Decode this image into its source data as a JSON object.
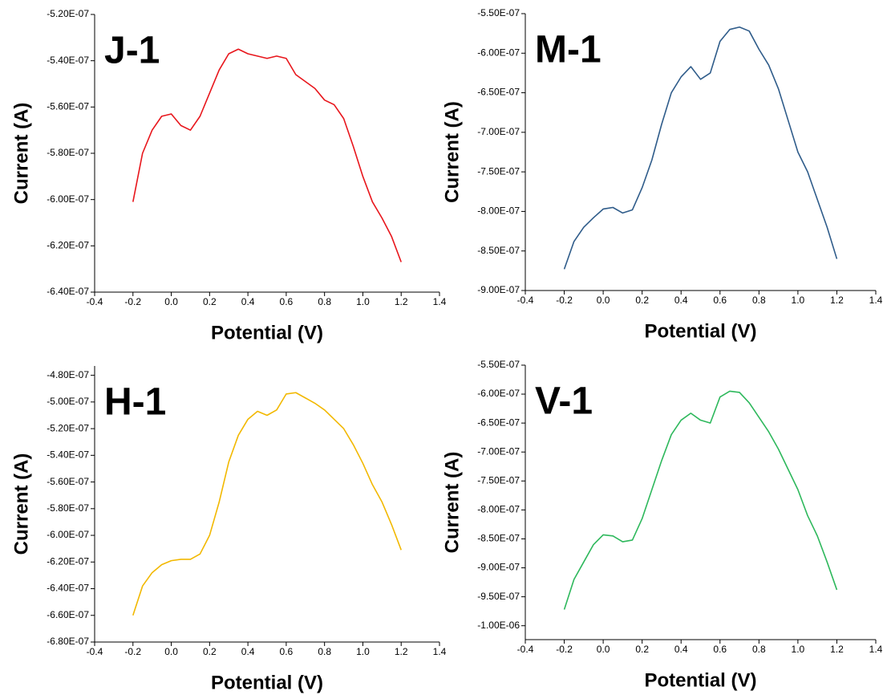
{
  "chart_data": [
    {
      "type": "line",
      "annotation": "J-1",
      "xlabel": "Potential (V)",
      "ylabel": "Current (A)",
      "color": "#e8161c",
      "x": [
        -0.2,
        -0.15,
        -0.1,
        -0.05,
        0,
        0.05,
        0.1,
        0.15,
        0.2,
        0.25,
        0.3,
        0.35,
        0.4,
        0.45,
        0.5,
        0.55,
        0.6,
        0.65,
        0.7,
        0.75,
        0.8,
        0.85,
        0.9,
        0.95,
        1.0,
        1.05,
        1.1,
        1.15,
        1.2
      ],
      "values": [
        -6.01e-07,
        -5.8e-07,
        -5.7e-07,
        -5.64e-07,
        -5.63e-07,
        -5.68e-07,
        -5.7e-07,
        -5.64e-07,
        -5.54e-07,
        -5.44e-07,
        -5.37e-07,
        -5.35e-07,
        -5.37e-07,
        -5.38e-07,
        -5.39e-07,
        -5.38e-07,
        -5.39e-07,
        -5.46e-07,
        -5.49e-07,
        -5.52e-07,
        -5.57e-07,
        -5.59e-07,
        -5.65e-07,
        -5.77e-07,
        -5.9e-07,
        -6.01e-07,
        -6.08e-07,
        -6.16e-07,
        -6.27e-07
      ],
      "xlim": [
        -0.4,
        1.4
      ],
      "xticks": [
        -0.4,
        -0.2,
        {
          "value": 0,
          "label": "0.0"
        },
        0.2,
        0.4,
        0.6,
        0.8,
        {
          "value": 1,
          "label": "1.0"
        },
        1.2,
        1.4
      ],
      "ylim": [
        -6.4e-07,
        -5.2e-07
      ],
      "yticks": [
        {
          "value": -6.4e-07,
          "label": "-6.40E-07"
        },
        {
          "value": -6.2e-07,
          "label": "-6.20E-07"
        },
        {
          "value": -6e-07,
          "label": "-6.00E-07"
        },
        {
          "value": -5.8e-07,
          "label": "-5.80E-07"
        },
        {
          "value": -5.6e-07,
          "label": "-5.60E-07"
        },
        {
          "value": -5.4e-07,
          "label": "-5.40E-07"
        },
        {
          "value": -5.2e-07,
          "label": "-5.20E-07"
        }
      ]
    },
    {
      "type": "line",
      "annotation": "M-1",
      "xlabel": "Potential (V)",
      "ylabel": "Current (A)",
      "color": "#2f5c8a",
      "x": [
        -0.2,
        -0.15,
        -0.1,
        -0.05,
        0,
        0.05,
        0.1,
        0.15,
        0.2,
        0.25,
        0.3,
        0.35,
        0.4,
        0.45,
        0.5,
        0.55,
        0.6,
        0.65,
        0.7,
        0.75,
        0.8,
        0.85,
        0.9,
        0.95,
        1.0,
        1.05,
        1.1,
        1.15,
        1.2
      ],
      "values": [
        -8.73e-07,
        -8.38e-07,
        -8.2e-07,
        -8.08e-07,
        -7.97e-07,
        -7.95e-07,
        -8.02e-07,
        -7.98e-07,
        -7.7e-07,
        -7.35e-07,
        -6.9e-07,
        -6.5e-07,
        -6.3e-07,
        -6.17e-07,
        -6.33e-07,
        -6.25e-07,
        -5.85e-07,
        -5.7e-07,
        -5.67e-07,
        -5.72e-07,
        -5.95e-07,
        -6.15e-07,
        -6.45e-07,
        -6.85e-07,
        -7.25e-07,
        -7.5e-07,
        -7.85e-07,
        -8.2e-07,
        -8.6e-07
      ],
      "xlim": [
        -0.4,
        1.4
      ],
      "xticks": [
        -0.4,
        -0.2,
        {
          "value": 0,
          "label": "0.0"
        },
        0.2,
        0.4,
        0.6,
        0.8,
        {
          "value": 1,
          "label": "1.0"
        },
        1.2,
        1.4
      ],
      "ylim": [
        -9e-07,
        -5.5e-07
      ],
      "yticks": [
        {
          "value": -9e-07,
          "label": "-9.00E-07"
        },
        {
          "value": -8.5e-07,
          "label": "-8.50E-07"
        },
        {
          "value": -8e-07,
          "label": "-8.00E-07"
        },
        {
          "value": -7.5e-07,
          "label": "-7.50E-07"
        },
        {
          "value": -7e-07,
          "label": "-7.00E-07"
        },
        {
          "value": -6.5e-07,
          "label": "-6.50E-07"
        },
        {
          "value": -6e-07,
          "label": "-6.00E-07"
        },
        {
          "value": -5.5e-07,
          "label": "-5.50E-07"
        }
      ]
    },
    {
      "type": "line",
      "annotation": "H-1",
      "xlabel": "Potential (V)",
      "ylabel": "Current (A)",
      "color": "#f2b800",
      "x": [
        -0.2,
        -0.15,
        -0.1,
        -0.05,
        0,
        0.05,
        0.1,
        0.15,
        0.2,
        0.25,
        0.3,
        0.35,
        0.4,
        0.45,
        0.5,
        0.55,
        0.6,
        0.65,
        0.7,
        0.75,
        0.8,
        0.85,
        0.9,
        0.95,
        1.0,
        1.05,
        1.1,
        1.15,
        1.2
      ],
      "values": [
        -6.6e-07,
        -6.38e-07,
        -6.28e-07,
        -6.22e-07,
        -6.19e-07,
        -6.18e-07,
        -6.18e-07,
        -6.14e-07,
        -6e-07,
        -5.75e-07,
        -5.45e-07,
        -5.25e-07,
        -5.13e-07,
        -5.07e-07,
        -5.1e-07,
        -5.06e-07,
        -4.94e-07,
        -4.93e-07,
        -4.97e-07,
        -5.01e-07,
        -5.06e-07,
        -5.13e-07,
        -5.2e-07,
        -5.32e-07,
        -5.46e-07,
        -5.62e-07,
        -5.75e-07,
        -5.92e-07,
        -6.11e-07
      ],
      "xlim": [
        -0.4,
        1.4
      ],
      "xticks": [
        -0.4,
        -0.2,
        {
          "value": 0,
          "label": "0.0"
        },
        0.2,
        0.4,
        0.6,
        0.8,
        {
          "value": 1,
          "label": "1.0"
        },
        1.2,
        1.4
      ],
      "ylim": [
        -6.8e-07,
        -4.73e-07
      ],
      "yticks": [
        {
          "value": -6.8e-07,
          "label": "-6.80E-07"
        },
        {
          "value": -6.6e-07,
          "label": "-6.60E-07"
        },
        {
          "value": -6.4e-07,
          "label": "-6.40E-07"
        },
        {
          "value": -6.2e-07,
          "label": "-6.20E-07"
        },
        {
          "value": -6e-07,
          "label": "-6.00E-07"
        },
        {
          "value": -5.8e-07,
          "label": "-5.80E-07"
        },
        {
          "value": -5.6e-07,
          "label": "-5.60E-07"
        },
        {
          "value": -5.4e-07,
          "label": "-5.40E-07"
        },
        {
          "value": -5.2e-07,
          "label": "-5.20E-07"
        },
        {
          "value": -5e-07,
          "label": "-5.00E-07"
        },
        {
          "value": -4.8e-07,
          "label": "-4.80E-07"
        }
      ]
    },
    {
      "type": "line",
      "annotation": "V-1",
      "xlabel": "Potential (V)",
      "ylabel": "Current (A)",
      "color": "#2eb85c",
      "x": [
        -0.2,
        -0.15,
        -0.1,
        -0.05,
        0,
        0.05,
        0.1,
        0.15,
        0.2,
        0.25,
        0.3,
        0.35,
        0.4,
        0.45,
        0.5,
        0.55,
        0.6,
        0.65,
        0.7,
        0.75,
        0.8,
        0.85,
        0.9,
        0.95,
        1.0,
        1.05,
        1.1,
        1.15,
        1.2
      ],
      "values": [
        -9.72e-07,
        -9.2e-07,
        -8.9e-07,
        -8.6e-07,
        -8.43e-07,
        -8.45e-07,
        -8.55e-07,
        -8.52e-07,
        -8.15e-07,
        -7.65e-07,
        -7.15e-07,
        -6.7e-07,
        -6.45e-07,
        -6.33e-07,
        -6.45e-07,
        -6.5e-07,
        -6.05e-07,
        -5.95e-07,
        -5.97e-07,
        -6.15e-07,
        -6.4e-07,
        -6.65e-07,
        -6.95e-07,
        -7.3e-07,
        -7.65e-07,
        -8.1e-07,
        -8.45e-07,
        -8.9e-07,
        -9.38e-07
      ],
      "xlim": [
        -0.4,
        1.4
      ],
      "xticks": [
        -0.4,
        -0.2,
        {
          "value": 0,
          "label": "0.0"
        },
        0.2,
        0.4,
        0.6,
        0.8,
        {
          "value": 1,
          "label": "1.0"
        },
        1.2,
        1.4
      ],
      "ylim": [
        -1.024e-06,
        -5.5e-07
      ],
      "yticks": [
        {
          "value": -1e-06,
          "label": "-1.00E-06"
        },
        {
          "value": -9.5e-07,
          "label": "-9.50E-07"
        },
        {
          "value": -9e-07,
          "label": "-9.00E-07"
        },
        {
          "value": -8.5e-07,
          "label": "-8.50E-07"
        },
        {
          "value": -8e-07,
          "label": "-8.00E-07"
        },
        {
          "value": -7.5e-07,
          "label": "-7.50E-07"
        },
        {
          "value": -7e-07,
          "label": "-7.00E-07"
        },
        {
          "value": -6.5e-07,
          "label": "-6.50E-07"
        },
        {
          "value": -6e-07,
          "label": "-6.00E-07"
        },
        {
          "value": -5.5e-07,
          "label": "-5.50E-07"
        }
      ]
    }
  ]
}
